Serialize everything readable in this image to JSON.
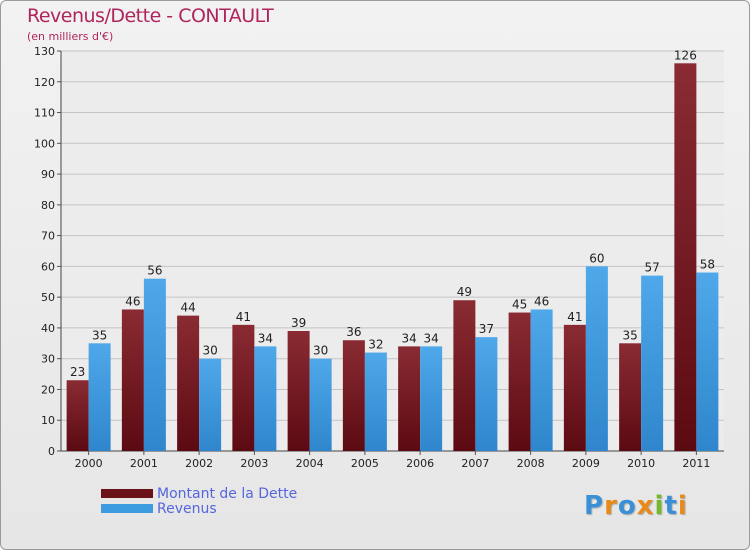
{
  "header": {
    "title": "Revenus/Dette - CONTAULT",
    "subtitle": "(en milliers d'€)"
  },
  "chart_data": {
    "type": "bar",
    "categories": [
      "2000",
      "2001",
      "2002",
      "2003",
      "2004",
      "2005",
      "2006",
      "2007",
      "2008",
      "2009",
      "2010",
      "2011"
    ],
    "series": [
      {
        "name": "Montant de la Dette",
        "color": "#7a1f27",
        "values": [
          23,
          46,
          44,
          41,
          39,
          36,
          34,
          49,
          45,
          41,
          35,
          126
        ]
      },
      {
        "name": "Revenus",
        "color": "#3d9be0",
        "values": [
          35,
          56,
          30,
          34,
          30,
          32,
          34,
          37,
          46,
          60,
          57,
          58
        ]
      }
    ],
    "ylim": [
      0,
      130
    ],
    "yticks": [
      0,
      10,
      20,
      30,
      40,
      50,
      60,
      70,
      80,
      90,
      100,
      110,
      120,
      130
    ],
    "grid": true,
    "legend": "bottom-left"
  },
  "legend": {
    "items": [
      {
        "label": "Montant de la Dette",
        "color": "#6b1118"
      },
      {
        "label": "Revenus",
        "color": "#3d9be0"
      }
    ]
  },
  "brand": {
    "letters": [
      "P",
      "r",
      "o",
      "x",
      "i",
      "t",
      "i"
    ],
    "colors": [
      "#3a8fd6",
      "#e88a1a",
      "#3a8fd6",
      "#e88a1a",
      "#76b82a",
      "#3a8fd6",
      "#e88a1a"
    ]
  }
}
